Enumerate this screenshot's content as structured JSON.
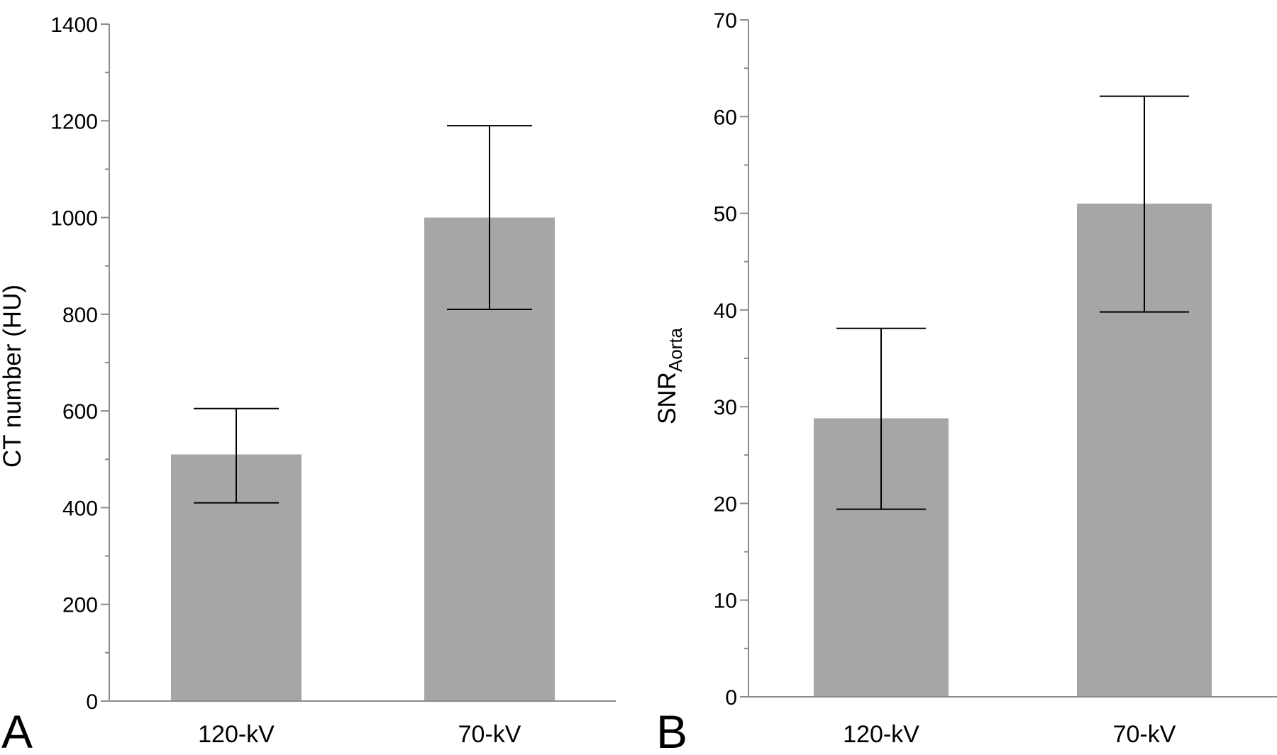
{
  "chart_data": [
    {
      "type": "bar",
      "panel_label": "A",
      "categories": [
        "120-kV",
        "70-kV"
      ],
      "values": [
        510,
        1000
      ],
      "error_bars": [
        {
          "lower": 410,
          "upper": 605
        },
        {
          "lower": 810,
          "upper": 1190
        }
      ],
      "title": "",
      "xlabel": "",
      "ylabel": "CT number (HU)",
      "ylim": [
        0,
        1400
      ],
      "yticks": [
        0,
        200,
        400,
        600,
        800,
        1000,
        1200,
        1400
      ],
      "minor_tick_step": 100,
      "grid": false,
      "bar_color": "#a6a6a6"
    },
    {
      "type": "bar",
      "panel_label": "B",
      "categories": [
        "120-kV",
        "70-kV"
      ],
      "values": [
        28.8,
        51
      ],
      "error_bars": [
        {
          "lower": 19.4,
          "upper": 38.1
        },
        {
          "lower": 39.8,
          "upper": 62.1
        }
      ],
      "title": "",
      "xlabel": "",
      "ylabel": "SNR",
      "ylabel_subscript": "Aorta",
      "ylim": [
        0,
        70
      ],
      "yticks": [
        0,
        10,
        20,
        30,
        40,
        50,
        60,
        70
      ],
      "minor_tick_step": 5,
      "grid": false,
      "bar_color": "#a6a6a6"
    }
  ]
}
